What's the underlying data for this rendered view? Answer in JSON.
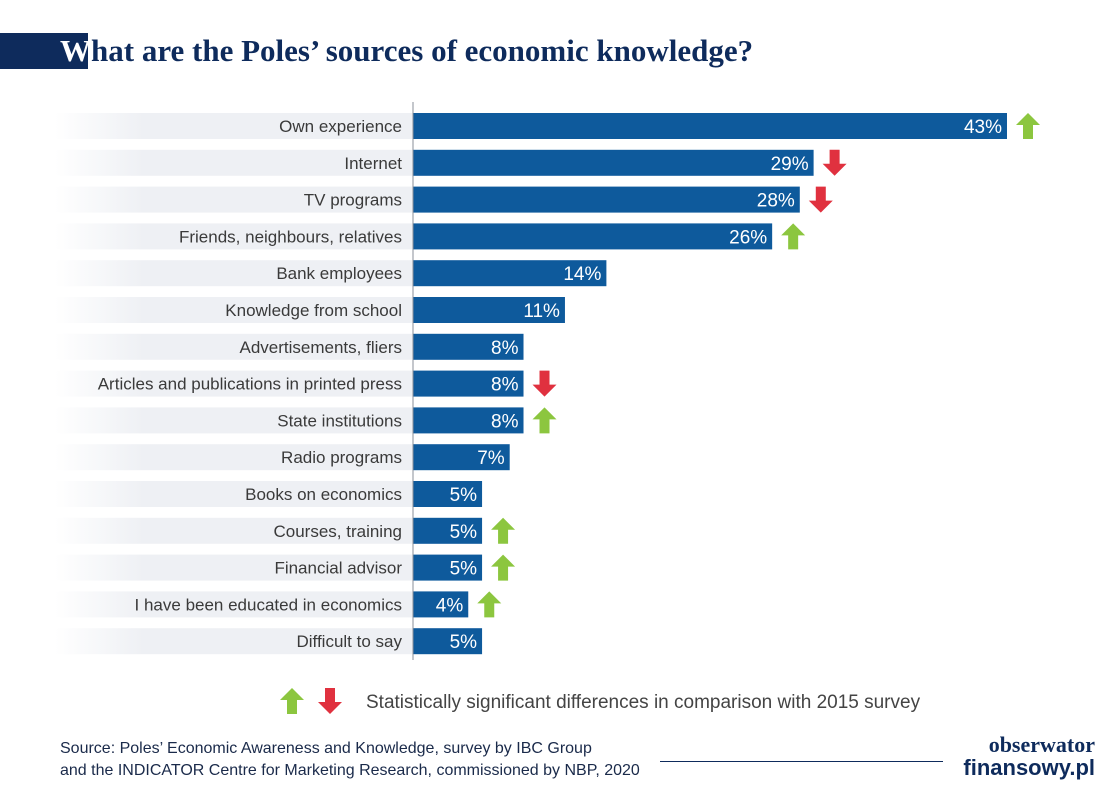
{
  "header": {
    "title_first": "W",
    "title_rest": "hat are the Poles’ sources of economic knowledge?"
  },
  "colors": {
    "bar": "#0e5a9c",
    "up_arrow": "#8cc63f",
    "down_arrow": "#e0313f",
    "row_band": "#eef0f4",
    "axis": "#8a8f99",
    "title": "#0e2b5c"
  },
  "chart_data": {
    "type": "bar",
    "orientation": "horizontal",
    "categories": [
      "Own experience",
      "Internet",
      "TV programs",
      "Friends, neighbours, relatives",
      "Bank employees",
      "Knowledge from school",
      "Advertisements, fliers",
      "Articles and publications in printed press",
      "State institutions",
      "Radio programs",
      "Books on economics",
      "Courses, training",
      "Financial advisor",
      "I have been educated in economics",
      "Difficult to say"
    ],
    "values": [
      43,
      29,
      28,
      26,
      14,
      11,
      8,
      8,
      8,
      7,
      5,
      5,
      5,
      4,
      5
    ],
    "value_labels": [
      "43%",
      "29%",
      "28%",
      "26%",
      "14%",
      "11%",
      "8%",
      "8%",
      "8%",
      "7%",
      "5%",
      "5%",
      "5%",
      "4%",
      "5%"
    ],
    "change_vs_2015": [
      "up",
      "down",
      "down",
      "up",
      "",
      "",
      "",
      "down",
      "up",
      "",
      "",
      "up",
      "up",
      "up",
      ""
    ],
    "unit": "%",
    "xlim": [
      0,
      43
    ]
  },
  "legend": {
    "text": "Statistically significant differences in comparison with 2015 survey",
    "up_icon": "up-arrow-icon",
    "down_icon": "down-arrow-icon"
  },
  "source": {
    "line1": "Source: Poles’ Economic Awareness and Knowledge, survey by IBC Group",
    "line2": "and the INDICATOR Centre for Marketing Research, commissioned by NBP, 2020"
  },
  "logo": {
    "line1": "obserwator",
    "line2": "finansowy.pl"
  }
}
